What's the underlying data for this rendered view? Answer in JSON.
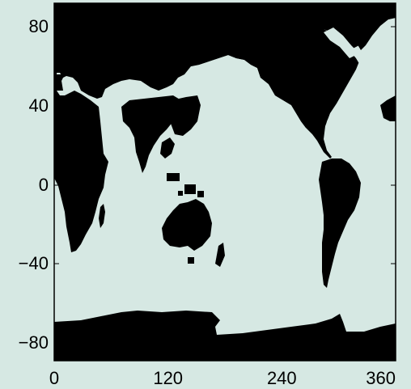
{
  "map": {
    "ocean_color": "#d6e8e3",
    "land_color": "#000000",
    "frame_color": "#000000",
    "x_ticks": [
      {
        "value": 0,
        "label": "0"
      },
      {
        "value": 120,
        "label": "120"
      },
      {
        "value": 240,
        "label": "240"
      },
      {
        "value": 360,
        "label": "360"
      }
    ],
    "y_ticks": [
      {
        "value": 80,
        "label": "80"
      },
      {
        "value": 40,
        "label": "40"
      },
      {
        "value": 0,
        "label": "0"
      },
      {
        "value": -40,
        "label": "−40"
      },
      {
        "value": -80,
        "label": "−80"
      }
    ],
    "xlim": [
      0,
      360
    ],
    "ylim": [
      -90,
      90
    ]
  }
}
